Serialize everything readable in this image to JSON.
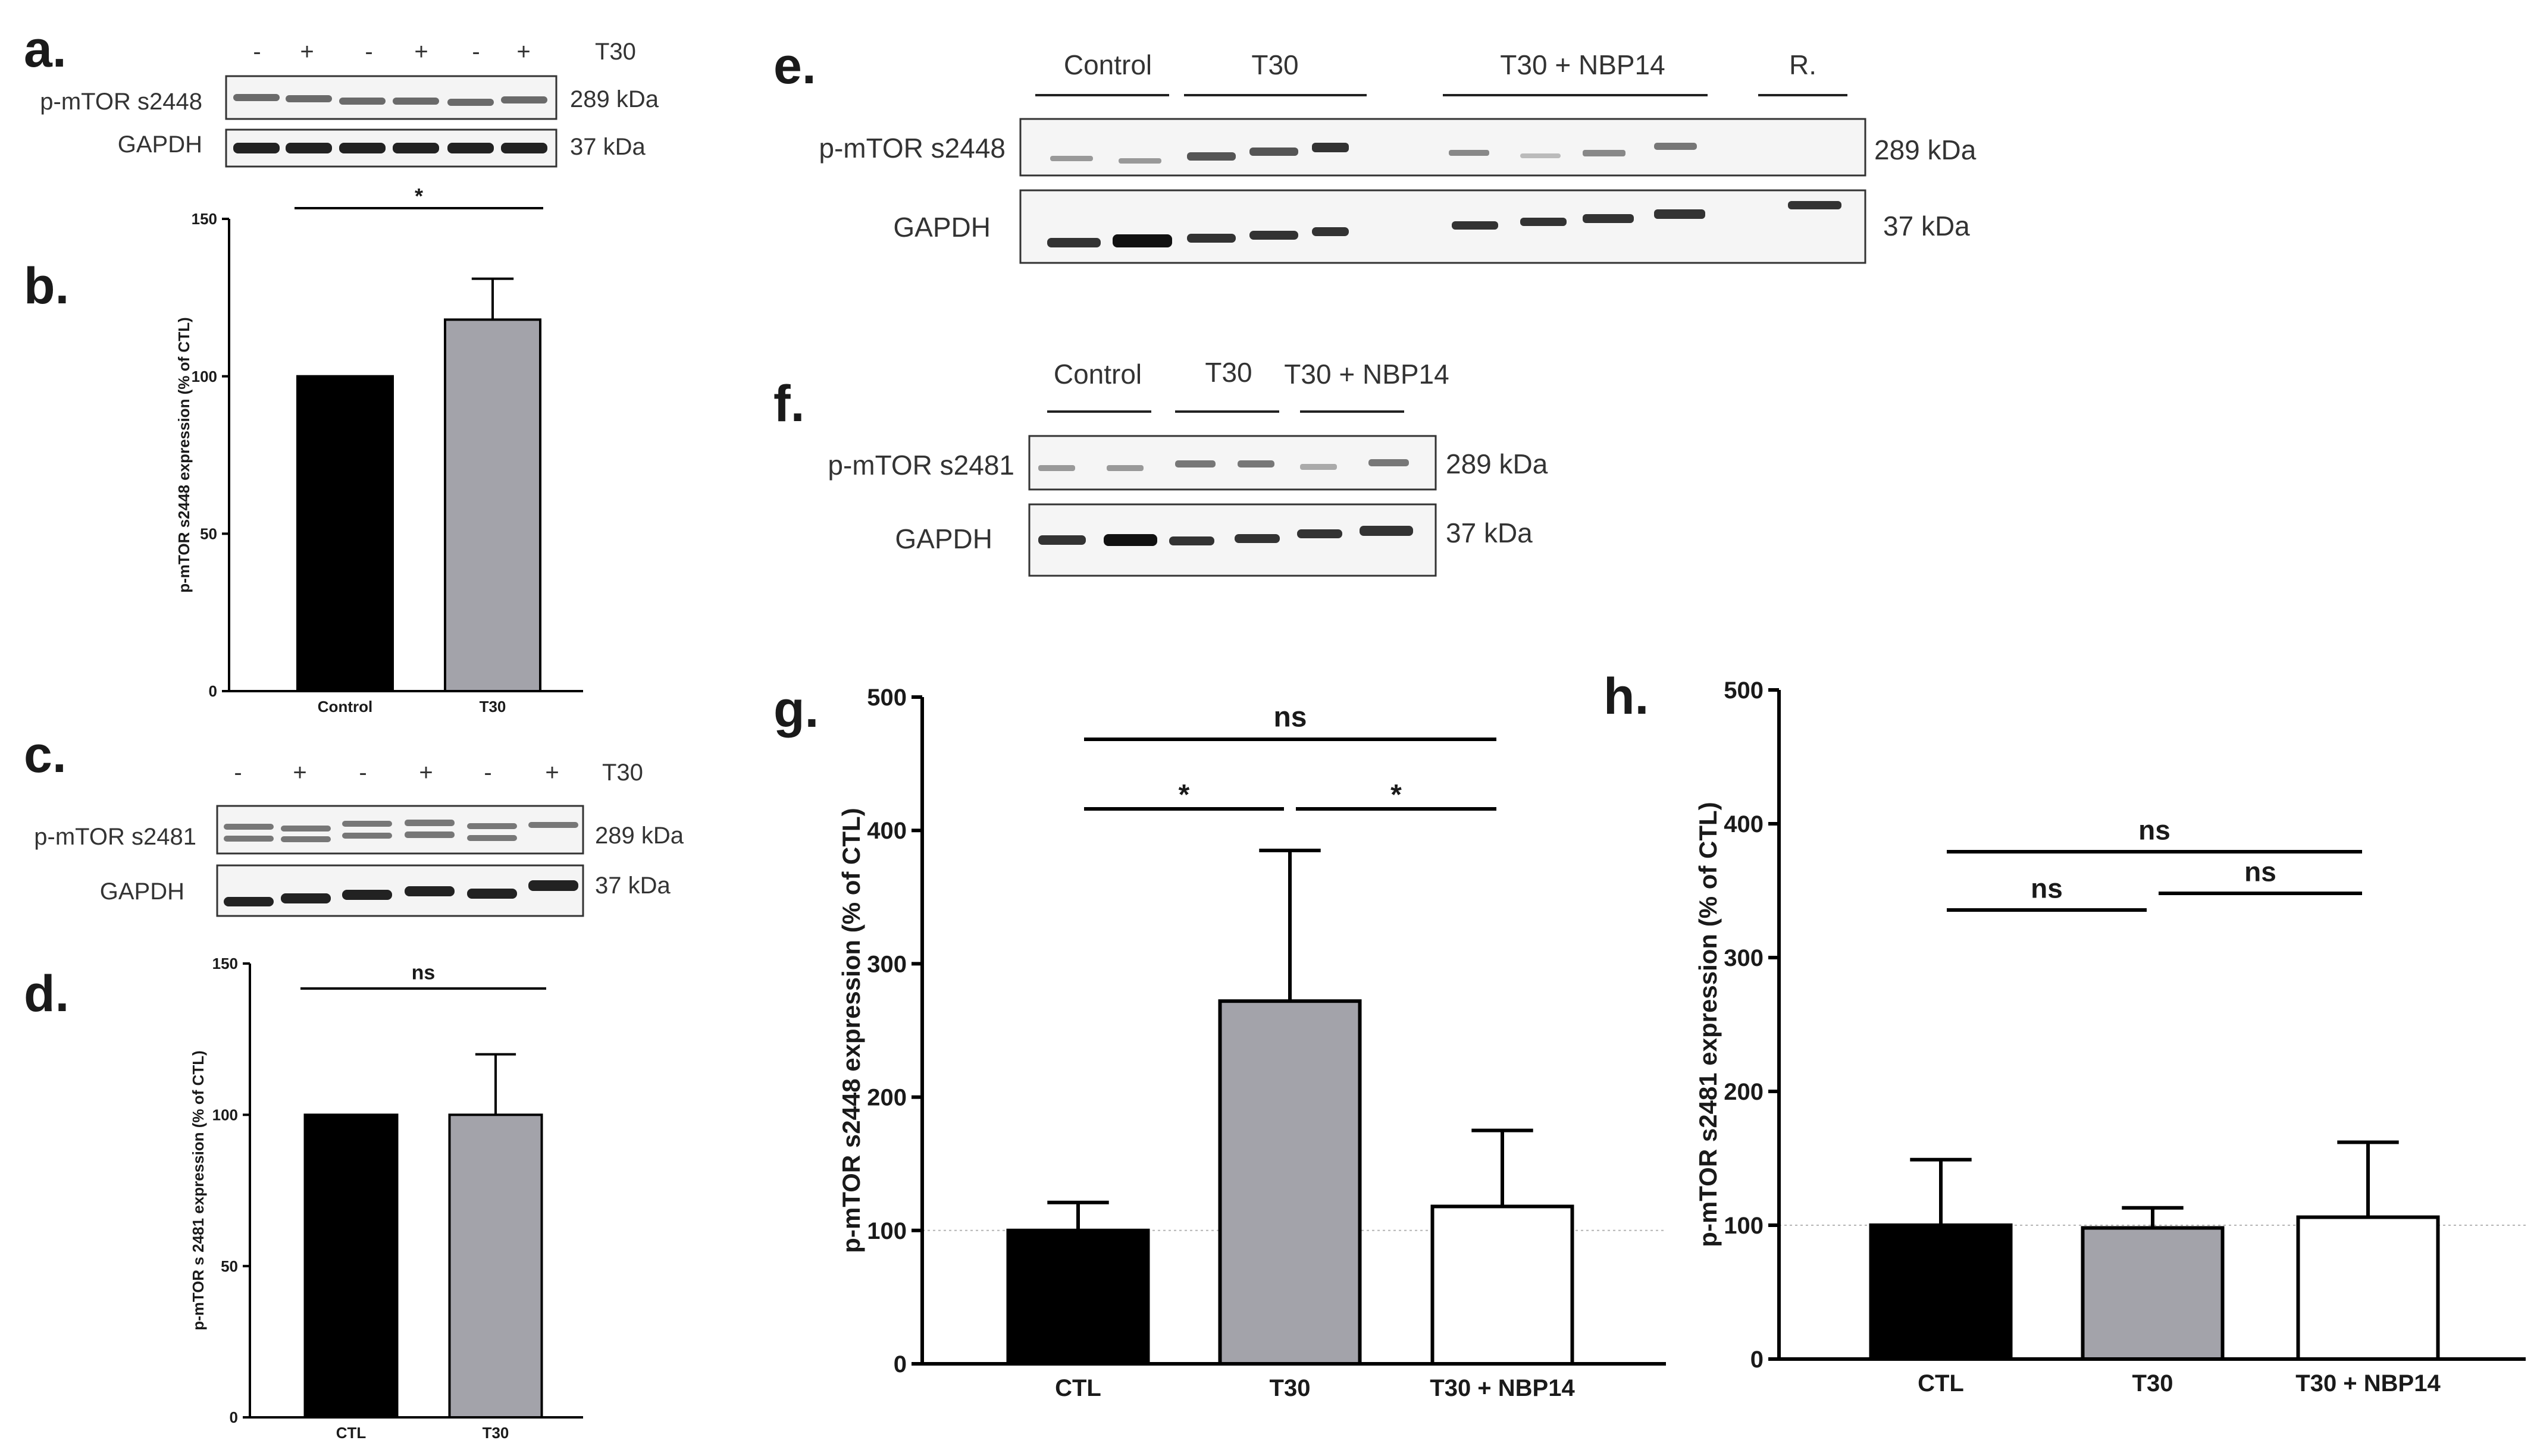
{
  "panels": {
    "a": {
      "label": "a.",
      "treatment_label": "T30",
      "lane_signs": [
        "-",
        "+",
        "-",
        "+",
        "-",
        "+"
      ],
      "rows": [
        {
          "name": "p-mTOR s2448",
          "size": "289 kDa"
        },
        {
          "name": "GAPDH",
          "size": "37 kDa"
        }
      ]
    },
    "c": {
      "label": "c.",
      "treatment_label": "T30",
      "lane_signs": [
        "-",
        "+",
        "-",
        "+",
        "-",
        "+"
      ],
      "rows": [
        {
          "name": "p-mTOR s2481",
          "size": "289 kDa"
        },
        {
          "name": "GAPDH",
          "size": "37 kDa"
        }
      ]
    },
    "e": {
      "label": "e.",
      "groups": [
        "Control",
        "T30",
        "T30 + NBP14",
        "R."
      ],
      "rows": [
        {
          "name": "p-mTOR s2448",
          "size": "289 kDa"
        },
        {
          "name": "GAPDH",
          "size": "37 kDa"
        }
      ]
    },
    "f": {
      "label": "f.",
      "groups": [
        "Control",
        "T30",
        "T30 + NBP14"
      ],
      "rows": [
        {
          "name": "p-mTOR s2481",
          "size": "289 kDa"
        },
        {
          "name": "GAPDH",
          "size": "37 kDa"
        }
      ]
    }
  },
  "chart_data": [
    {
      "id": "b",
      "panel_label": "b.",
      "type": "bar",
      "categories": [
        "Control",
        "T30"
      ],
      "values": [
        100,
        118
      ],
      "errors": [
        0,
        13
      ],
      "colors": [
        "#000000",
        "#a3a3aa"
      ],
      "ylabel": "p-mTOR s2448 expression (% of CTL)",
      "ylim": [
        0,
        150
      ],
      "yticks": [
        0,
        50,
        100,
        150
      ],
      "reference_line": null,
      "comparisons": [
        {
          "from": 0,
          "to": 1,
          "label": "*"
        }
      ]
    },
    {
      "id": "d",
      "panel_label": "d.",
      "type": "bar",
      "categories": [
        "CTL",
        "T30"
      ],
      "values": [
        100,
        100
      ],
      "errors": [
        0,
        20
      ],
      "colors": [
        "#000000",
        "#a3a3aa"
      ],
      "ylabel": "p-mTOR s 2481 expression (% of CTL)",
      "ylim": [
        0,
        150
      ],
      "yticks": [
        0,
        50,
        100,
        150
      ],
      "reference_line": null,
      "comparisons": [
        {
          "from": 0,
          "to": 1,
          "label": "ns"
        }
      ]
    },
    {
      "id": "g",
      "panel_label": "g.",
      "type": "bar",
      "categories": [
        "CTL",
        "T30",
        "T30 + NBP14"
      ],
      "values": [
        100,
        272,
        118
      ],
      "errors": [
        21,
        113,
        57
      ],
      "colors": [
        "#000000",
        "#a3a3aa",
        "#ffffff"
      ],
      "ylabel": "p-mTOR s2448 expression (% of CTL)",
      "ylim": [
        0,
        500
      ],
      "yticks": [
        0,
        100,
        200,
        300,
        400,
        500
      ],
      "reference_line": 100,
      "comparisons": [
        {
          "from": 0,
          "to": 2,
          "label": "ns"
        },
        {
          "from": 0,
          "to": 1,
          "label": "*"
        },
        {
          "from": 1,
          "to": 2,
          "label": "*"
        }
      ]
    },
    {
      "id": "h",
      "panel_label": "h.",
      "type": "bar",
      "categories": [
        "CTL",
        "T30",
        "T30 + NBP14"
      ],
      "values": [
        100,
        98,
        106
      ],
      "errors": [
        49,
        15,
        56
      ],
      "colors": [
        "#000000",
        "#a3a3aa",
        "#ffffff"
      ],
      "ylabel": "p-mTOR s2481 expression (% of CTL)",
      "ylim": [
        0,
        500
      ],
      "yticks": [
        0,
        100,
        200,
        300,
        400,
        500
      ],
      "reference_line": 100,
      "comparisons": [
        {
          "from": 0,
          "to": 2,
          "label": "ns"
        },
        {
          "from": 0,
          "to": 1,
          "label": "ns"
        },
        {
          "from": 1,
          "to": 2,
          "label": "ns"
        }
      ]
    }
  ]
}
